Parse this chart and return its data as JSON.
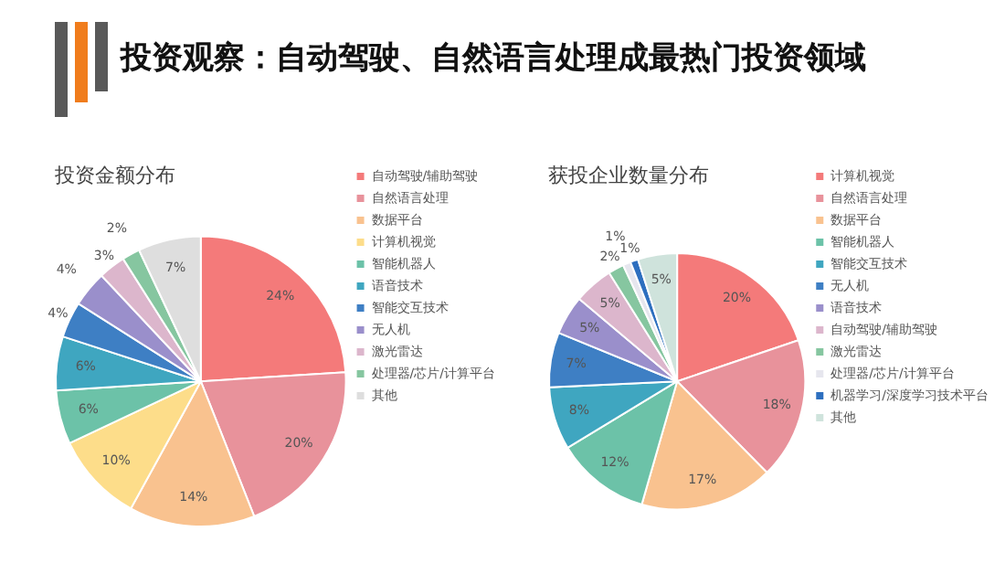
{
  "chart_data": [
    {
      "type": "pie",
      "title": "投资金额分布",
      "annotations": [
        "投资观察：自动驾驶、自然语言处理成最热门投资领域"
      ],
      "categories": [
        "自动驾驶/辅助驾驶",
        "自然语言处理",
        "数据平台",
        "计算机视觉",
        "智能机器人",
        "语音技术",
        "智能交互技术",
        "无人机",
        "激光雷达",
        "处理器/芯片/计算平台",
        "其他"
      ],
      "values": [
        24,
        20,
        14,
        10,
        6,
        6,
        4,
        4,
        3,
        2,
        7
      ],
      "value_labels": [
        "24%",
        "20%",
        "14%",
        "10%",
        "6%",
        "6%",
        "4%",
        "4%",
        "3%",
        "2%",
        "7%"
      ],
      "colors": [
        "#f47a7a",
        "#e8929b",
        "#f9c28f",
        "#fddd8a",
        "#6cc2a8",
        "#3fa6c0",
        "#3e7fc4",
        "#9a8fcb",
        "#dcb6cc",
        "#86c6a0",
        "#dedede"
      ],
      "legend": "right"
    },
    {
      "type": "pie",
      "title": "获投企业数量分布",
      "categories": [
        "计算机视觉",
        "自然语言处理",
        "数据平台",
        "智能机器人",
        "智能交互技术",
        "无人机",
        "语音技术",
        "自动驾驶/辅助驾驶",
        "激光雷达",
        "处理器/芯片/计算平台",
        "机器学习/深度学习技术平台",
        "其他"
      ],
      "values": [
        20,
        18,
        17,
        12,
        8,
        7,
        5,
        5,
        2,
        1,
        1,
        5
      ],
      "value_labels": [
        "20%",
        "18%",
        "17%",
        "12%",
        "8%",
        "7%",
        "5%",
        "5%",
        "2%",
        "1%",
        "1%",
        "5%"
      ],
      "colors": [
        "#f47a7a",
        "#e8929b",
        "#f9c28f",
        "#6cc2a8",
        "#3fa6c0",
        "#3e7fc4",
        "#9a8fcb",
        "#dcb6cc",
        "#86c6a0",
        "#e6e6ee",
        "#2d6fbf",
        "#cfe3dc"
      ],
      "legend": "right"
    }
  ]
}
